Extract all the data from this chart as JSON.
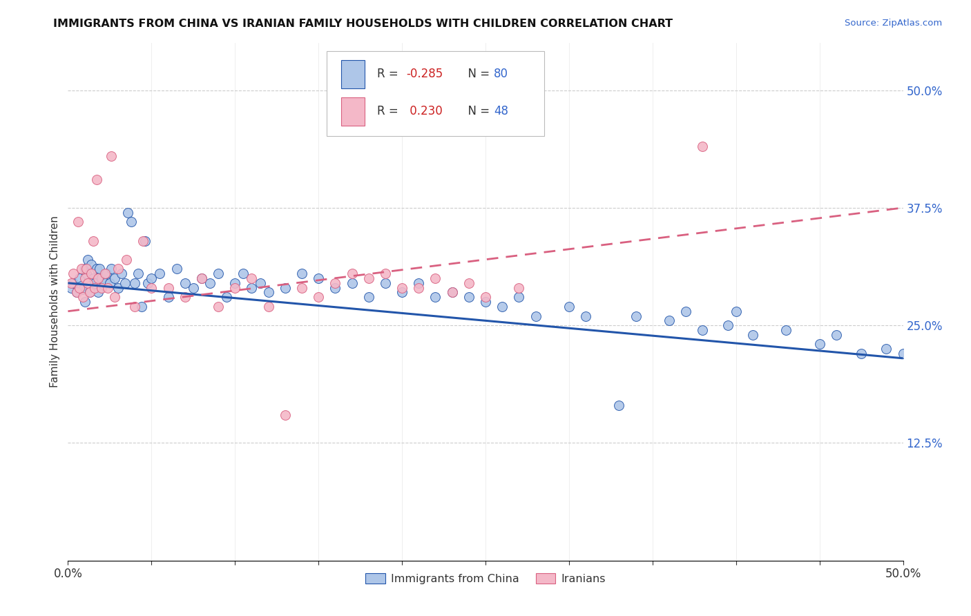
{
  "title": "IMMIGRANTS FROM CHINA VS IRANIAN FAMILY HOUSEHOLDS WITH CHILDREN CORRELATION CHART",
  "source_text": "Source: ZipAtlas.com",
  "ylabel": "Family Households with Children",
  "xlim": [
    0.0,
    0.5
  ],
  "ylim": [
    0.0,
    0.55
  ],
  "color_china": "#aec6e8",
  "color_iran": "#f4b8c8",
  "line_color_china": "#2255aa",
  "line_color_iran": "#d96080",
  "background_color": "#ffffff",
  "grid_color": "#cccccc",
  "china_trend_x": [
    0.0,
    0.5
  ],
  "china_trend_y": [
    0.295,
    0.215
  ],
  "iran_trend_x": [
    0.0,
    0.5
  ],
  "iran_trend_y": [
    0.265,
    0.375
  ],
  "china_x": [
    0.002,
    0.003,
    0.005,
    0.007,
    0.008,
    0.009,
    0.01,
    0.01,
    0.011,
    0.012,
    0.013,
    0.014,
    0.015,
    0.016,
    0.017,
    0.018,
    0.019,
    0.02,
    0.022,
    0.023,
    0.025,
    0.026,
    0.028,
    0.03,
    0.032,
    0.034,
    0.036,
    0.038,
    0.04,
    0.042,
    0.044,
    0.046,
    0.048,
    0.05,
    0.055,
    0.06,
    0.065,
    0.07,
    0.075,
    0.08,
    0.085,
    0.09,
    0.095,
    0.1,
    0.105,
    0.11,
    0.115,
    0.12,
    0.13,
    0.14,
    0.15,
    0.16,
    0.17,
    0.18,
    0.19,
    0.2,
    0.21,
    0.22,
    0.23,
    0.24,
    0.25,
    0.26,
    0.27,
    0.28,
    0.3,
    0.31,
    0.33,
    0.34,
    0.36,
    0.37,
    0.38,
    0.395,
    0.4,
    0.41,
    0.43,
    0.45,
    0.46,
    0.475,
    0.49,
    0.5
  ],
  "china_y": [
    0.29,
    0.295,
    0.285,
    0.3,
    0.292,
    0.288,
    0.31,
    0.275,
    0.305,
    0.32,
    0.285,
    0.315,
    0.3,
    0.295,
    0.31,
    0.285,
    0.31,
    0.3,
    0.295,
    0.305,
    0.295,
    0.31,
    0.3,
    0.29,
    0.305,
    0.295,
    0.37,
    0.36,
    0.295,
    0.305,
    0.27,
    0.34,
    0.295,
    0.3,
    0.305,
    0.28,
    0.31,
    0.295,
    0.29,
    0.3,
    0.295,
    0.305,
    0.28,
    0.295,
    0.305,
    0.29,
    0.295,
    0.285,
    0.29,
    0.305,
    0.3,
    0.29,
    0.295,
    0.28,
    0.295,
    0.285,
    0.295,
    0.28,
    0.285,
    0.28,
    0.275,
    0.27,
    0.28,
    0.26,
    0.27,
    0.26,
    0.165,
    0.26,
    0.255,
    0.265,
    0.245,
    0.25,
    0.265,
    0.24,
    0.245,
    0.23,
    0.24,
    0.22,
    0.225,
    0.22
  ],
  "iran_x": [
    0.002,
    0.003,
    0.005,
    0.006,
    0.007,
    0.008,
    0.009,
    0.01,
    0.011,
    0.012,
    0.013,
    0.014,
    0.015,
    0.016,
    0.017,
    0.018,
    0.02,
    0.022,
    0.024,
    0.026,
    0.028,
    0.03,
    0.035,
    0.04,
    0.045,
    0.05,
    0.06,
    0.07,
    0.08,
    0.09,
    0.1,
    0.11,
    0.12,
    0.13,
    0.14,
    0.15,
    0.16,
    0.17,
    0.18,
    0.19,
    0.2,
    0.21,
    0.22,
    0.23,
    0.24,
    0.25,
    0.27,
    0.38
  ],
  "iran_y": [
    0.295,
    0.305,
    0.285,
    0.36,
    0.29,
    0.31,
    0.28,
    0.3,
    0.31,
    0.295,
    0.285,
    0.305,
    0.34,
    0.29,
    0.405,
    0.3,
    0.29,
    0.305,
    0.29,
    0.43,
    0.28,
    0.31,
    0.32,
    0.27,
    0.34,
    0.29,
    0.29,
    0.28,
    0.3,
    0.27,
    0.29,
    0.3,
    0.27,
    0.155,
    0.29,
    0.28,
    0.295,
    0.305,
    0.3,
    0.305,
    0.29,
    0.29,
    0.3,
    0.285,
    0.295,
    0.28,
    0.29,
    0.44
  ]
}
